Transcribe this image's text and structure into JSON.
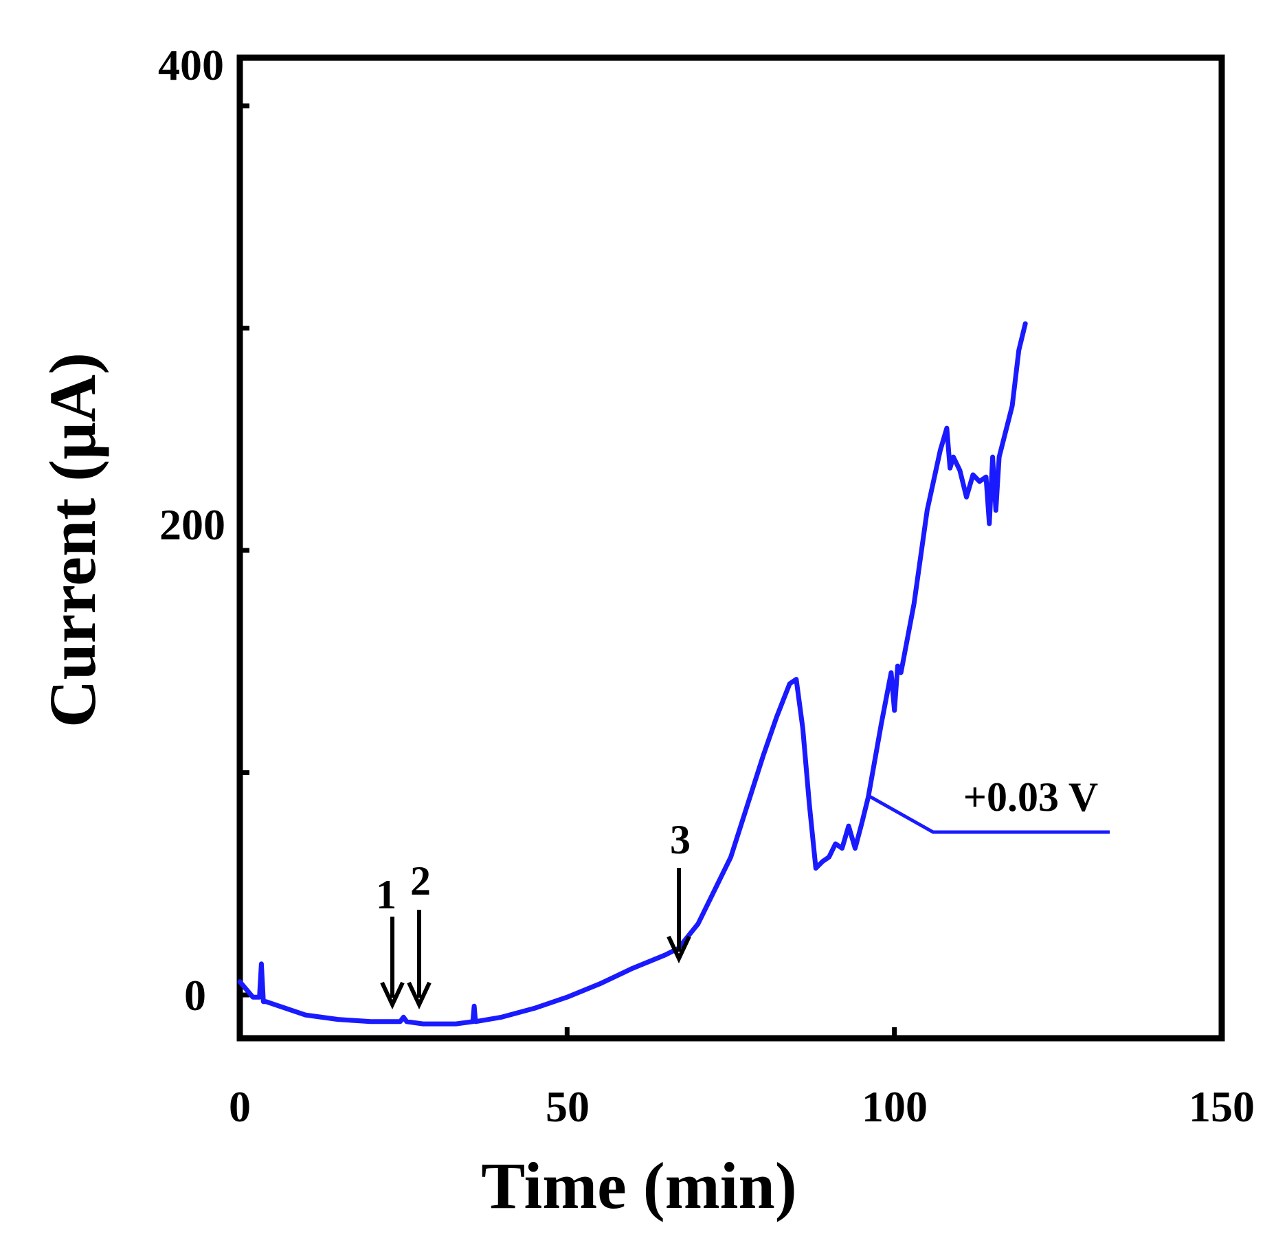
{
  "chart_data": {
    "type": "line",
    "title": "",
    "xlabel": "Time (min)",
    "ylabel": "Current (μA)",
    "xlim": [
      0,
      150
    ],
    "ylim": [
      -20,
      400
    ],
    "xticks": [
      0,
      50,
      100,
      150
    ],
    "xtick_labels": [
      "0",
      "50",
      "100",
      "150"
    ],
    "yticks": [
      0,
      200,
      400
    ],
    "ytick_labels": [
      "0",
      "200",
      "400"
    ],
    "y_minor_ticks": [
      100,
      300
    ],
    "grid": false,
    "legend": "none",
    "series": [
      {
        "name": "+0.03 V",
        "color": "#1a1aff",
        "x": [
          0,
          2,
          3,
          3.3,
          3.6,
          4,
          6,
          10,
          15,
          20,
          24.5,
          25,
          25.5,
          28,
          33,
          35.6,
          35.8,
          36,
          40,
          45,
          50,
          55,
          60,
          65,
          67,
          70,
          75,
          80,
          82,
          84,
          85,
          86,
          87,
          88,
          89,
          90,
          91,
          92,
          93,
          94,
          95,
          96,
          98,
          99.5,
          100,
          100.5,
          101,
          103,
          105,
          107,
          108,
          108.5,
          109,
          110,
          111,
          112,
          113,
          114,
          114.5,
          115,
          115.5,
          116,
          118,
          119,
          120
        ],
        "y": [
          6,
          -1,
          -1,
          14,
          -3,
          -3,
          -5,
          -9,
          -11,
          -12,
          -12,
          -10,
          -12,
          -13,
          -13,
          -12,
          -5,
          -12,
          -10,
          -6,
          -1,
          5,
          12,
          18,
          21,
          32,
          62,
          108,
          125,
          140,
          142,
          120,
          86,
          57,
          60,
          62,
          68,
          66,
          76,
          66,
          77,
          89,
          122,
          145,
          128,
          148,
          145,
          176,
          218,
          245,
          255,
          237,
          242,
          236,
          224,
          234,
          231,
          233,
          212,
          242,
          218,
          242,
          265,
          290,
          302
        ]
      }
    ],
    "annotations": [
      {
        "label": "1",
        "x": 23.5
      },
      {
        "label": "2",
        "x": 27.5
      },
      {
        "label": "3",
        "x": 67
      },
      {
        "label": "+0.03 V",
        "x": 96,
        "y": 89
      }
    ]
  }
}
